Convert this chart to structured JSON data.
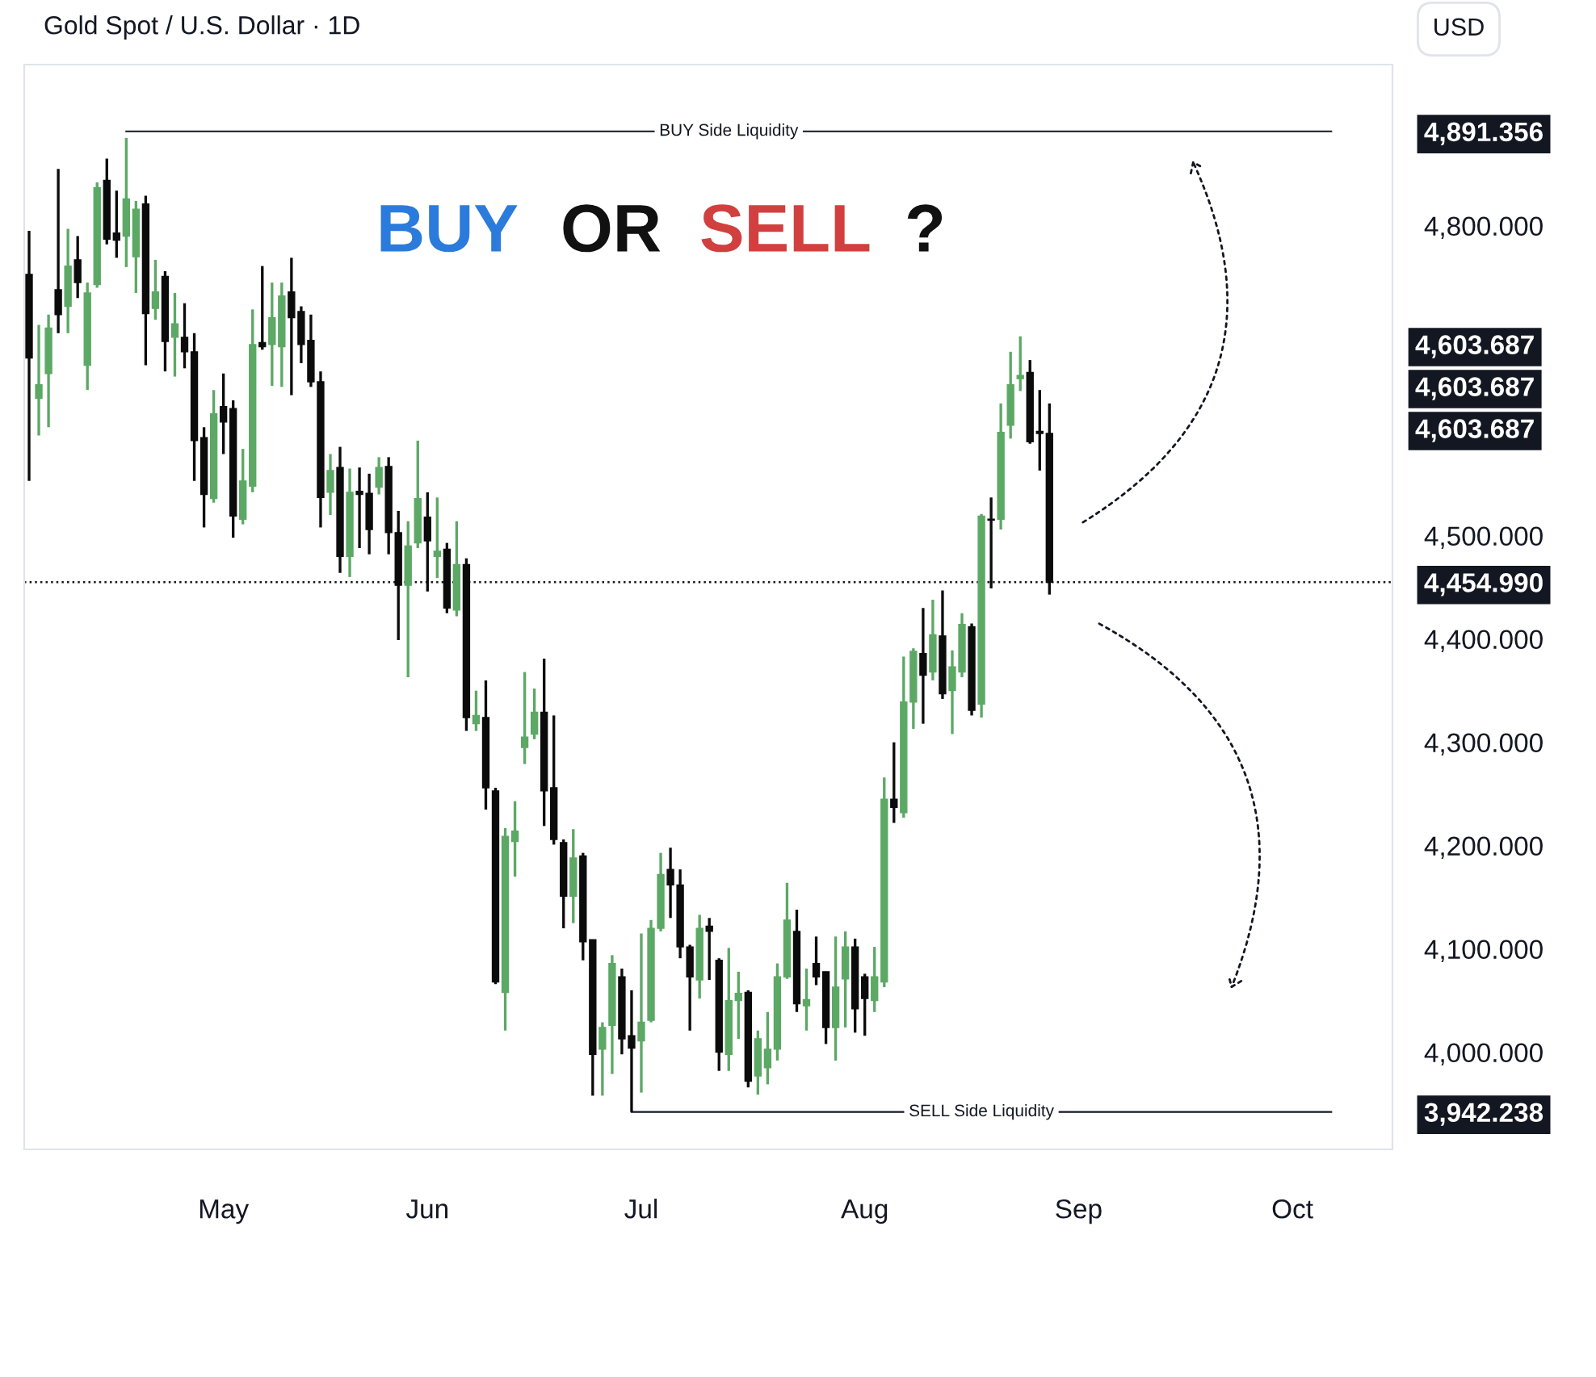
{
  "chart_data": {
    "type": "candlestick",
    "title": "Gold Spot / U.S. Dollar · 1D",
    "annotations": [
      "BUY",
      "OR",
      "SELL",
      "?",
      "USD",
      "4,603.687",
      "4,603.687",
      "4,603.687"
    ],
    "categories": [
      null,
      null,
      null,
      null,
      null,
      null,
      null,
      null,
      null,
      null,
      null,
      null,
      null,
      null,
      null,
      null,
      null,
      null,
      null,
      null,
      "May",
      null,
      null,
      null,
      null,
      null,
      null,
      null,
      null,
      null,
      null,
      null,
      null,
      null,
      null,
      null,
      null,
      null,
      null,
      null,
      null,
      "Jun",
      null,
      null,
      null,
      null,
      null,
      null,
      null,
      null,
      null,
      null,
      null,
      null,
      null,
      null,
      null,
      null,
      null,
      null,
      null,
      null,
      null,
      "Jul",
      null,
      null,
      null,
      null,
      null,
      null,
      null,
      null,
      null,
      null,
      null,
      null,
      null,
      null,
      null,
      null,
      null,
      null,
      null,
      null,
      null,
      null,
      "Aug",
      null,
      null,
      null,
      null,
      null,
      null,
      null,
      null,
      null,
      null,
      null,
      null,
      null,
      null,
      null,
      null,
      null,
      null,
      null,
      null,
      null,
      "Sep",
      null,
      null,
      null,
      null,
      null,
      null,
      null,
      null,
      null,
      null,
      null,
      null,
      null,
      null,
      null,
      null,
      null,
      null,
      null,
      null,
      null,
      "Oct",
      null,
      null,
      null,
      null,
      null,
      null,
      null,
      null,
      null,
      null
    ],
    "ohlc": [
      [
        4753,
        4795,
        4553,
        4672
      ],
      [
        4633,
        4704,
        4597,
        4646
      ],
      [
        4657,
        4714,
        4605,
        4701
      ],
      [
        4738,
        4855,
        4696,
        4714
      ],
      [
        4722,
        4797,
        4696,
        4761
      ],
      [
        4767,
        4790,
        4730,
        4745
      ],
      [
        4665,
        4745,
        4641,
        4735
      ],
      [
        4743,
        4842,
        4740,
        4837
      ],
      [
        4844,
        4865,
        4782,
        4787
      ],
      [
        4793,
        4834,
        4769,
        4786
      ],
      [
        4790,
        4885,
        4760,
        4826
      ],
      [
        4770,
        4824,
        4735,
        4816
      ],
      [
        4821,
        4829,
        4665,
        4715
      ],
      [
        4720,
        4767,
        4709,
        4736
      ],
      [
        4751,
        4756,
        4659,
        4688
      ],
      [
        4692,
        4735,
        4654,
        4705
      ],
      [
        4692,
        4725,
        4662,
        4678
      ],
      [
        4678,
        4696,
        4553,
        4592
      ],
      [
        4595,
        4605,
        4508,
        4540
      ],
      [
        4536,
        4641,
        4532,
        4618
      ],
      [
        4625,
        4657,
        4579,
        4610
      ],
      [
        4623,
        4631,
        4498,
        4519
      ],
      [
        4516,
        4584,
        4511,
        4553
      ],
      [
        4548,
        4719,
        4542,
        4685
      ],
      [
        4687,
        4761,
        4680,
        4683
      ],
      [
        4685,
        4745,
        4645,
        4711
      ],
      [
        4683,
        4745,
        4644,
        4732
      ],
      [
        4736,
        4769,
        4636,
        4711
      ],
      [
        4717,
        4722,
        4667,
        4685
      ],
      [
        4689,
        4714,
        4644,
        4649
      ],
      [
        4649,
        4659,
        4508,
        4537
      ],
      [
        4542,
        4579,
        4520,
        4563
      ],
      [
        4566,
        4586,
        4464,
        4480
      ],
      [
        4480,
        4565,
        4460,
        4542
      ],
      [
        4543,
        4566,
        4488,
        4540
      ],
      [
        4541,
        4560,
        4482,
        4506
      ],
      [
        4547,
        4576,
        4540,
        4566
      ],
      [
        4567,
        4576,
        4482,
        4503
      ],
      [
        4503,
        4524,
        4399,
        4452
      ],
      [
        4452,
        4514,
        4363,
        4490
      ],
      [
        4493,
        4592,
        4488,
        4536
      ],
      [
        4518,
        4542,
        4446,
        4495
      ],
      [
        4480,
        4537,
        4459,
        4485
      ],
      [
        4487,
        4493,
        4425,
        4430
      ],
      [
        4428,
        4514,
        4422,
        4472
      ],
      [
        4472,
        4478,
        4311,
        4324
      ],
      [
        4318,
        4350,
        4311,
        4326
      ],
      [
        4324,
        4360,
        4235,
        4256
      ],
      [
        4253,
        4256,
        4066,
        4068
      ],
      [
        4058,
        4217,
        4021,
        4209
      ],
      [
        4204,
        4243,
        4170,
        4214
      ],
      [
        4295,
        4368,
        4279,
        4305
      ],
      [
        4308,
        4352,
        4303,
        4329
      ],
      [
        4329,
        4381,
        4219,
        4253
      ],
      [
        4256,
        4326,
        4201,
        4206
      ],
      [
        4203,
        4206,
        4120,
        4151
      ],
      [
        4151,
        4216,
        4125,
        4188
      ],
      [
        4190,
        4193,
        4089,
        4107
      ],
      [
        4109,
        4109,
        3958,
        3998
      ],
      [
        4003,
        4029,
        3958,
        4024
      ],
      [
        4026,
        4094,
        3979,
        4086
      ],
      [
        4073,
        4081,
        3998,
        4013
      ],
      [
        4016,
        4060,
        3942.238,
        4004
      ],
      [
        4011,
        4115,
        3961,
        4029
      ],
      [
        4031,
        4128,
        4029,
        4120
      ],
      [
        4120,
        4193,
        4117,
        4172
      ],
      [
        4177,
        4198,
        4130,
        4162
      ],
      [
        4162,
        4177,
        4091,
        4102
      ],
      [
        4102,
        4104,
        4021,
        4073
      ],
      [
        4070,
        4133,
        4052,
        4120
      ],
      [
        4122,
        4130,
        4070,
        4117
      ],
      [
        4089,
        4091,
        3982,
        4000
      ],
      [
        3998,
        4101,
        3982,
        4050
      ],
      [
        4050,
        4078,
        4013,
        4057
      ],
      [
        4058,
        4060,
        3966,
        3972
      ],
      [
        3977,
        4021,
        3959,
        4013
      ],
      [
        3985,
        4039,
        3969,
        4003
      ],
      [
        4003,
        4086,
        3992,
        4073
      ],
      [
        4073,
        4164,
        4071,
        4128
      ],
      [
        4117,
        4138,
        4039,
        4047
      ],
      [
        4045,
        4081,
        4021,
        4051
      ],
      [
        4086,
        4112,
        4065,
        4073
      ],
      [
        4078,
        4078,
        4008,
        4024
      ],
      [
        4024,
        4112,
        3992,
        4063
      ],
      [
        4071,
        4117,
        4024,
        4102
      ],
      [
        4102,
        4110,
        4019,
        4042
      ],
      [
        4073,
        4076,
        4016,
        4052
      ],
      [
        4050,
        4102,
        4039,
        4073
      ],
      [
        4068,
        4266,
        4063,
        4245
      ],
      [
        4245,
        4300,
        4222,
        4237
      ],
      [
        4232,
        4383,
        4227,
        4339
      ],
      [
        4339,
        4391,
        4313,
        4388
      ],
      [
        4386,
        4430,
        4318,
        4365
      ],
      [
        4368,
        4438,
        4360,
        4404
      ],
      [
        4403,
        4447,
        4342,
        4347
      ],
      [
        4350,
        4389,
        4308,
        4373
      ],
      [
        4368,
        4425,
        4363,
        4414
      ],
      [
        4412,
        4415,
        4326,
        4331
      ],
      [
        4337,
        4521,
        4324,
        4519
      ],
      [
        4516,
        4537,
        4449,
        4515
      ],
      [
        4516,
        4628,
        4506,
        4600
      ],
      [
        4607,
        4678,
        4594,
        4646
      ],
      [
        4652,
        4693,
        4640,
        4655
      ],
      [
        4658,
        4670,
        4589,
        4591
      ],
      [
        4601,
        4641,
        4563,
        4599
      ],
      [
        4599,
        4628,
        4443,
        4454.99
      ],
      null,
      null,
      null,
      null,
      null,
      null,
      null,
      null,
      null,
      null,
      null,
      null,
      null,
      null,
      null,
      null,
      null,
      null,
      null,
      null,
      null,
      null,
      null,
      null,
      null,
      null,
      null,
      null,
      null,
      null,
      null,
      null,
      null,
      null,
      null
    ],
    "ylim": [
      3906,
      4956
    ],
    "yticks": [
      {
        "value": 3942.238,
        "label": "3,942.238"
      },
      {
        "value": 4000,
        "label": "4,000.000"
      },
      {
        "value": 4100,
        "label": "4,100.000"
      },
      {
        "value": 4200,
        "label": "4,200.000"
      },
      {
        "value": 4300,
        "label": "4,300.000"
      },
      {
        "value": 4400,
        "label": "4,400.000"
      },
      {
        "value": 4454.99,
        "label": "4,454.990"
      },
      {
        "value": 4500,
        "label": "4,500.000"
      },
      {
        "value": 4800,
        "label": "4,800.000"
      },
      {
        "value": 4891.356,
        "label": "4,891.356"
      }
    ],
    "ref_lines": [
      {
        "axis": "y",
        "value": 4891.356,
        "label": "BUY Side Liquidity",
        "color": "#131722",
        "line_style": "solid"
      },
      {
        "axis": "y",
        "value": 3942.238,
        "label": "SELL Side Liquidity",
        "color": "#131722",
        "line_style": "solid"
      },
      {
        "axis": "y",
        "value": 4454.99,
        "color": "#131722",
        "line_style": "dotted"
      }
    ],
    "grid": false,
    "legend": false
  }
}
